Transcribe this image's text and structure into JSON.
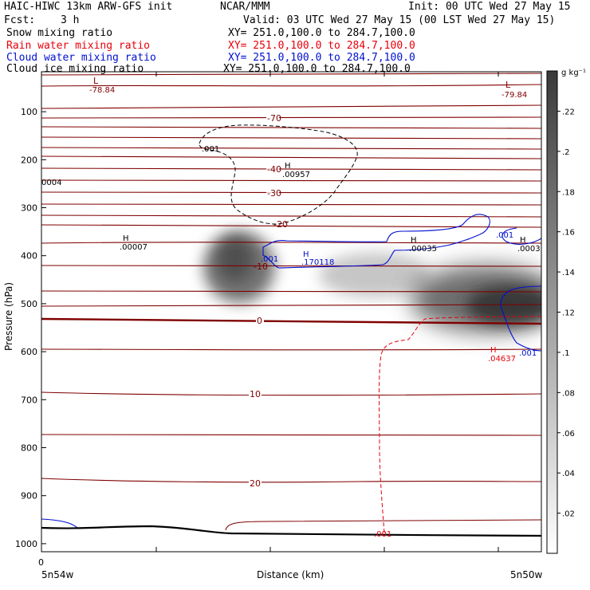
{
  "header": {
    "title": "HAIC-HIWC 13km ARW-GFS init",
    "org": "NCAR/MMM",
    "init": "Init: 00 UTC Wed 27 May 15",
    "fcst_label": "Fcst:",
    "fcst_value": "3 h",
    "valid": "Valid: 03 UTC Wed 27 May 15 (00 LST Wed 27 May 15)"
  },
  "fields": [
    {
      "name": "Snow mixing ratio",
      "xy": "XY= 251.0,100.0 to 284.7,100.0",
      "color": "#000000"
    },
    {
      "name": "Rain water mixing ratio",
      "xy": "XY= 251.0,100.0 to 284.7,100.0",
      "color": "#e8000b"
    },
    {
      "name": "Cloud water mixing ratio",
      "xy": "XY= 251.0,100.0 to 284.7,100.0",
      "color": "#0010d0"
    },
    {
      "name": "Cloud ice mixing ratio",
      "xy": "XY= 251.0,100.0 to 284.7,100.0",
      "color": "#000000"
    }
  ],
  "chart_data": {
    "type": "heatmap",
    "ylabel": "Pressure (hPa)",
    "xlabel": "Distance (km)",
    "ylim": [
      1050,
      50
    ],
    "xlim": [
      0,
      88
    ],
    "y_ticks": [
      100,
      200,
      300,
      400,
      500,
      600,
      700,
      800,
      900,
      1000
    ],
    "x_tick_labels": [
      "0"
    ],
    "x_left_label": "5n54w",
    "x_right_label": "5n50w",
    "colorbar": {
      "unit": "g kg⁻¹",
      "ticks": [
        ".02",
        ".04",
        ".06",
        ".08",
        ".1",
        ".12",
        ".14",
        ".16",
        ".18",
        ".2",
        ".22"
      ],
      "range": [
        0,
        0.24
      ]
    },
    "temperature_contours": {
      "color": "#800000",
      "levels": [
        -70,
        -60,
        -50,
        -40,
        -30,
        -20,
        -10,
        0,
        10,
        20
      ],
      "labels": [
        "-70",
        "-40",
        "-30",
        "-20",
        "-10",
        "0",
        "10",
        "20"
      ]
    },
    "annotations": [
      {
        "text": "L",
        "color": "#800000"
      },
      {
        "text": "-78.84",
        "color": "#800000"
      },
      {
        "text": "L",
        "color": "#800000"
      },
      {
        "text": "-79.84",
        "color": "#800000"
      },
      {
        "text": ".001",
        "color": "#000000"
      },
      {
        "text": "H",
        "color": "#000000"
      },
      {
        "text": ".00957",
        "color": "#000000"
      },
      {
        "text": "0004",
        "color": "#000000"
      },
      {
        "text": "H",
        "color": "#000000"
      },
      {
        "text": ".00007",
        "color": "#000000"
      },
      {
        "text": ".001",
        "color": "#0010d0"
      },
      {
        "text": "H",
        "color": "#0010d0"
      },
      {
        "text": ".170118",
        "color": "#0010d0"
      },
      {
        "text": "H",
        "color": "#000000"
      },
      {
        "text": ".00035",
        "color": "#000000"
      },
      {
        "text": ".001",
        "color": "#0010d0"
      },
      {
        "text": "H",
        "color": "#000000"
      },
      {
        "text": ".0003",
        "color": "#000000"
      },
      {
        "text": "H",
        "color": "#e8000b"
      },
      {
        "text": ".04637",
        "color": "#e8000b"
      },
      {
        "text": ".001",
        "color": "#0010d0"
      },
      {
        "text": ".001",
        "color": "#e8000b"
      }
    ]
  }
}
